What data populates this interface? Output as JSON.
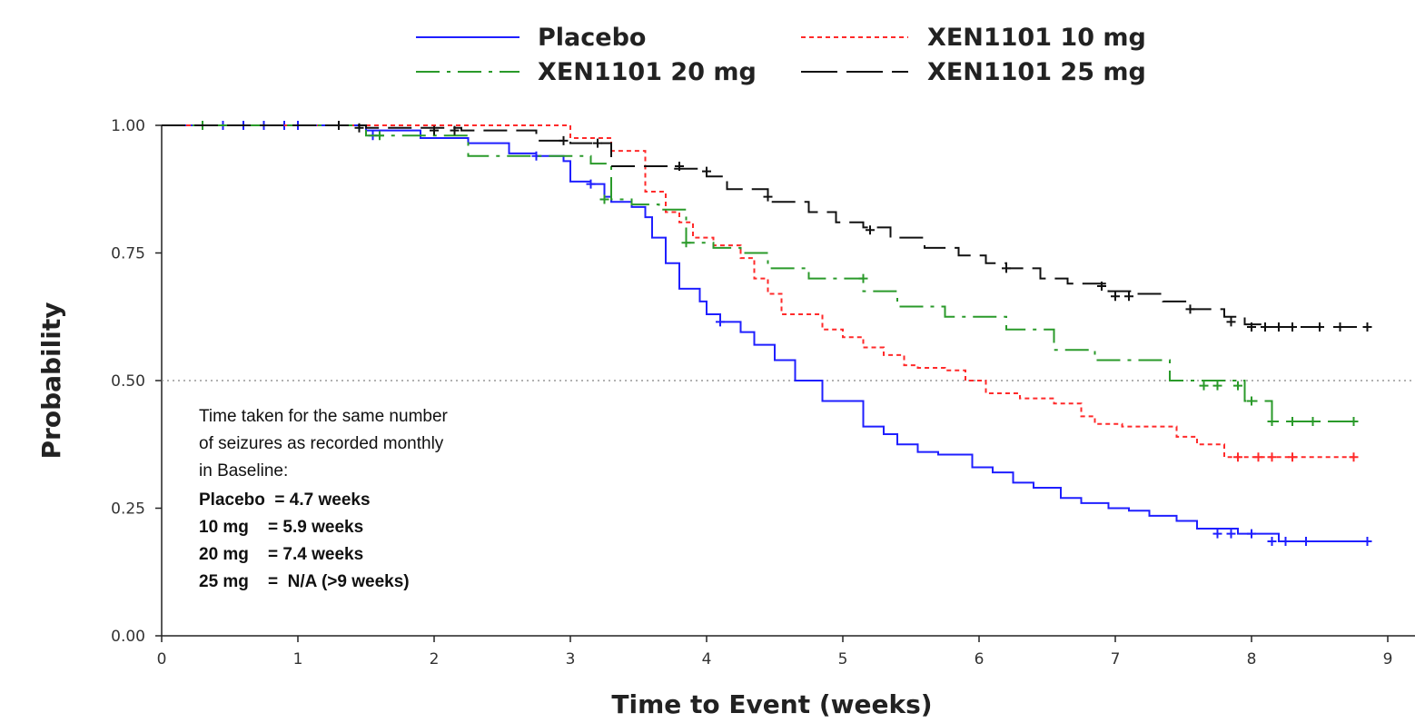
{
  "chart_data": {
    "type": "line",
    "title": "",
    "xlabel": "Time to Event (weeks)",
    "ylabel": "Probability",
    "xlim": [
      0,
      9
    ],
    "ylim": [
      0,
      1
    ],
    "x_ticks": [
      "0",
      "1",
      "2",
      "3",
      "4",
      "5",
      "6",
      "7",
      "8",
      "9"
    ],
    "y_ticks": [
      "0.00",
      "0.25",
      "0.50",
      "0.75",
      "1.00"
    ],
    "reference_line": 0.5,
    "legend_position": "top",
    "annotation": {
      "lines": [
        "Time taken for the same number",
        "of seizures as recorded monthly",
        "in Baseline:",
        "Placebo  = 4.7 weeks",
        "10 mg    = 5.9 weeks",
        "20 mg    = 7.4 weeks",
        "25 mg    =  N/A (>9 weeks)"
      ]
    },
    "series": [
      {
        "name": "Placebo",
        "color": "#1f1fff",
        "dash": "solid",
        "steps": [
          [
            0,
            1.0
          ],
          [
            1.5,
            0.99
          ],
          [
            1.9,
            0.975
          ],
          [
            2.25,
            0.965
          ],
          [
            2.55,
            0.945
          ],
          [
            2.75,
            0.94
          ],
          [
            2.95,
            0.93
          ],
          [
            3.0,
            0.89
          ],
          [
            3.15,
            0.885
          ],
          [
            3.25,
            0.86
          ],
          [
            3.3,
            0.85
          ],
          [
            3.45,
            0.84
          ],
          [
            3.55,
            0.82
          ],
          [
            3.6,
            0.78
          ],
          [
            3.7,
            0.73
          ],
          [
            3.8,
            0.68
          ],
          [
            3.95,
            0.655
          ],
          [
            4.0,
            0.63
          ],
          [
            4.1,
            0.615
          ],
          [
            4.25,
            0.595
          ],
          [
            4.35,
            0.57
          ],
          [
            4.5,
            0.54
          ],
          [
            4.65,
            0.5
          ],
          [
            4.85,
            0.46
          ],
          [
            5.15,
            0.41
          ],
          [
            5.3,
            0.395
          ],
          [
            5.4,
            0.375
          ],
          [
            5.55,
            0.36
          ],
          [
            5.7,
            0.355
          ],
          [
            5.95,
            0.33
          ],
          [
            6.1,
            0.32
          ],
          [
            6.25,
            0.3
          ],
          [
            6.4,
            0.29
          ],
          [
            6.6,
            0.27
          ],
          [
            6.75,
            0.26
          ],
          [
            6.95,
            0.25
          ],
          [
            7.1,
            0.245
          ],
          [
            7.25,
            0.235
          ],
          [
            7.45,
            0.225
          ],
          [
            7.6,
            0.21
          ],
          [
            7.9,
            0.2
          ],
          [
            8.2,
            0.185
          ],
          [
            8.85,
            0.185
          ]
        ],
        "censored": [
          [
            0.3,
            1.0
          ],
          [
            0.45,
            1.0
          ],
          [
            0.6,
            1.0
          ],
          [
            0.75,
            1.0
          ],
          [
            0.9,
            1.0
          ],
          [
            1.0,
            1.0
          ],
          [
            1.3,
            1.0
          ],
          [
            1.55,
            0.98
          ],
          [
            2.75,
            0.94
          ],
          [
            3.15,
            0.885
          ],
          [
            4.1,
            0.615
          ],
          [
            7.75,
            0.2
          ],
          [
            7.85,
            0.2
          ],
          [
            8.0,
            0.2
          ],
          [
            8.15,
            0.185
          ],
          [
            8.25,
            0.185
          ],
          [
            8.4,
            0.185
          ],
          [
            8.85,
            0.185
          ]
        ]
      },
      {
        "name": "XEN1101 10 mg",
        "color": "#ff2a2a",
        "dash": "5,4",
        "steps": [
          [
            0,
            1.0
          ],
          [
            3.0,
            0.975
          ],
          [
            3.3,
            0.95
          ],
          [
            3.55,
            0.87
          ],
          [
            3.7,
            0.83
          ],
          [
            3.8,
            0.81
          ],
          [
            3.9,
            0.78
          ],
          [
            4.05,
            0.765
          ],
          [
            4.25,
            0.74
          ],
          [
            4.35,
            0.7
          ],
          [
            4.45,
            0.67
          ],
          [
            4.55,
            0.63
          ],
          [
            4.85,
            0.6
          ],
          [
            5.0,
            0.585
          ],
          [
            5.15,
            0.565
          ],
          [
            5.3,
            0.55
          ],
          [
            5.45,
            0.53
          ],
          [
            5.55,
            0.525
          ],
          [
            5.75,
            0.52
          ],
          [
            5.9,
            0.5
          ],
          [
            6.05,
            0.475
          ],
          [
            6.3,
            0.465
          ],
          [
            6.55,
            0.455
          ],
          [
            6.75,
            0.43
          ],
          [
            6.85,
            0.415
          ],
          [
            7.05,
            0.41
          ],
          [
            7.45,
            0.39
          ],
          [
            7.6,
            0.375
          ],
          [
            7.8,
            0.35
          ],
          [
            8.75,
            0.35
          ]
        ],
        "censored": [
          [
            7.9,
            0.35
          ],
          [
            8.05,
            0.35
          ],
          [
            8.15,
            0.35
          ],
          [
            8.3,
            0.35
          ],
          [
            8.75,
            0.35
          ]
        ]
      },
      {
        "name": "XEN1101 20 mg",
        "color": "#2a9a2a",
        "dash": "26,8,4,8",
        "steps": [
          [
            0,
            1.0
          ],
          [
            1.5,
            0.98
          ],
          [
            2.25,
            0.94
          ],
          [
            3.15,
            0.925
          ],
          [
            3.3,
            0.855
          ],
          [
            3.45,
            0.845
          ],
          [
            3.65,
            0.835
          ],
          [
            3.85,
            0.77
          ],
          [
            4.05,
            0.76
          ],
          [
            4.25,
            0.75
          ],
          [
            4.45,
            0.72
          ],
          [
            4.75,
            0.7
          ],
          [
            5.15,
            0.675
          ],
          [
            5.4,
            0.645
          ],
          [
            5.75,
            0.625
          ],
          [
            6.2,
            0.6
          ],
          [
            6.55,
            0.56
          ],
          [
            6.85,
            0.54
          ],
          [
            7.4,
            0.5
          ],
          [
            7.95,
            0.46
          ],
          [
            8.15,
            0.42
          ],
          [
            8.75,
            0.42
          ]
        ],
        "censored": [
          [
            0.3,
            1.0
          ],
          [
            1.6,
            0.98
          ],
          [
            3.25,
            0.855
          ],
          [
            3.85,
            0.77
          ],
          [
            5.15,
            0.7
          ],
          [
            7.65,
            0.49
          ],
          [
            7.75,
            0.49
          ],
          [
            7.9,
            0.49
          ],
          [
            8.0,
            0.46
          ],
          [
            8.15,
            0.42
          ],
          [
            8.3,
            0.42
          ],
          [
            8.45,
            0.42
          ],
          [
            8.75,
            0.42
          ]
        ]
      },
      {
        "name": "XEN1101 25 mg",
        "color": "#111111",
        "dash": "26,10",
        "steps": [
          [
            0,
            1.0
          ],
          [
            1.5,
            0.995
          ],
          [
            2.2,
            0.99
          ],
          [
            2.75,
            0.97
          ],
          [
            3.0,
            0.965
          ],
          [
            3.3,
            0.92
          ],
          [
            3.75,
            0.915
          ],
          [
            4.0,
            0.9
          ],
          [
            4.15,
            0.875
          ],
          [
            4.45,
            0.85
          ],
          [
            4.75,
            0.83
          ],
          [
            4.95,
            0.81
          ],
          [
            5.15,
            0.8
          ],
          [
            5.35,
            0.78
          ],
          [
            5.6,
            0.76
          ],
          [
            5.85,
            0.745
          ],
          [
            6.05,
            0.73
          ],
          [
            6.2,
            0.72
          ],
          [
            6.45,
            0.7
          ],
          [
            6.65,
            0.69
          ],
          [
            6.95,
            0.675
          ],
          [
            7.15,
            0.67
          ],
          [
            7.35,
            0.655
          ],
          [
            7.55,
            0.64
          ],
          [
            7.8,
            0.625
          ],
          [
            7.95,
            0.61
          ],
          [
            8.1,
            0.605
          ],
          [
            8.85,
            0.605
          ]
        ],
        "censored": [
          [
            1.3,
            1.0
          ],
          [
            1.45,
            0.995
          ],
          [
            2.0,
            0.99
          ],
          [
            2.15,
            0.99
          ],
          [
            2.95,
            0.97
          ],
          [
            3.2,
            0.965
          ],
          [
            3.8,
            0.92
          ],
          [
            4.0,
            0.91
          ],
          [
            4.45,
            0.86
          ],
          [
            5.2,
            0.795
          ],
          [
            6.2,
            0.72
          ],
          [
            6.9,
            0.685
          ],
          [
            7.0,
            0.665
          ],
          [
            7.1,
            0.665
          ],
          [
            7.55,
            0.64
          ],
          [
            7.85,
            0.615
          ],
          [
            8.0,
            0.605
          ],
          [
            8.1,
            0.605
          ],
          [
            8.2,
            0.605
          ],
          [
            8.3,
            0.605
          ],
          [
            8.5,
            0.605
          ],
          [
            8.65,
            0.605
          ],
          [
            8.85,
            0.605
          ]
        ]
      }
    ]
  }
}
